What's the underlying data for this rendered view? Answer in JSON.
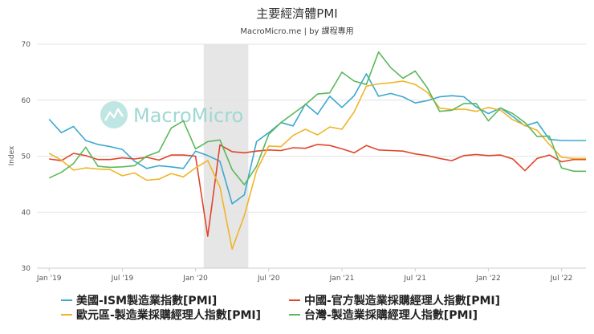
{
  "chart_data": {
    "type": "line",
    "title": "主要經濟體PMI",
    "subtitle": "MacroMicro.me | by 課程專用",
    "watermark": "MacroMicro",
    "ylabel": "Index",
    "xlabel": "",
    "ylim": [
      30,
      70
    ],
    "yticks": [
      30,
      40,
      50,
      60,
      70
    ],
    "xlim": [
      "2018-12",
      "2022-09"
    ],
    "xticks": [
      {
        "label": "Jan '19",
        "date": "2019-01"
      },
      {
        "label": "Jul '19",
        "date": "2019-07"
      },
      {
        "label": "Jan '20",
        "date": "2020-01"
      },
      {
        "label": "Jul '20",
        "date": "2020-07"
      },
      {
        "label": "Jan '21",
        "date": "2021-01"
      },
      {
        "label": "Jul '21",
        "date": "2021-07"
      },
      {
        "label": "Jan '22",
        "date": "2022-01"
      },
      {
        "label": "Jul '22",
        "date": "2022-07"
      }
    ],
    "highlight_band": [
      "2020-02",
      "2020-05"
    ],
    "grid": "horizontal",
    "legend_position": "bottom",
    "series": [
      {
        "name": "美國-ISM製造業指數[PMI]",
        "color": "#3aa8d0",
        "start": "2019-01",
        "values": [
          56.6,
          54.2,
          55.3,
          52.8,
          52.1,
          51.7,
          51.2,
          49.1,
          47.8,
          48.3,
          48.1,
          47.8,
          50.9,
          50.1,
          49.1,
          41.5,
          43.1,
          52.6,
          54.2,
          56.0,
          55.4,
          59.3,
          57.5,
          60.7,
          58.7,
          60.8,
          64.7,
          60.7,
          61.2,
          60.6,
          59.5,
          59.9,
          60.6,
          60.8,
          60.6,
          58.8,
          57.6,
          58.6,
          57.1,
          55.4,
          56.1,
          53.0,
          52.8,
          52.8,
          52.8
        ]
      },
      {
        "name": "中國-官方製造業採購經理人指數[PMI]",
        "color": "#e0452a",
        "start": "2019-01",
        "values": [
          49.5,
          49.2,
          50.5,
          50.1,
          49.4,
          49.4,
          49.7,
          49.5,
          49.8,
          49.3,
          50.2,
          50.2,
          50.0,
          35.7,
          52.0,
          50.8,
          50.6,
          50.9,
          51.1,
          51.0,
          51.5,
          51.4,
          52.1,
          51.9,
          51.3,
          50.6,
          51.9,
          51.1,
          51.0,
          50.9,
          50.4,
          50.1,
          49.6,
          49.2,
          50.1,
          50.3,
          50.1,
          50.2,
          49.5,
          47.4,
          49.6,
          50.2,
          49.0,
          49.4,
          49.4
        ]
      },
      {
        "name": "歐元區-製造業採購經理人指數[PMI]",
        "color": "#f0b429",
        "start": "2019-01",
        "values": [
          50.5,
          49.3,
          47.5,
          47.9,
          47.7,
          47.6,
          46.5,
          47.0,
          45.7,
          45.9,
          46.9,
          46.3,
          47.9,
          49.2,
          44.5,
          33.4,
          39.4,
          47.4,
          51.8,
          51.7,
          53.7,
          54.8,
          53.8,
          55.2,
          54.8,
          57.9,
          62.5,
          62.9,
          63.1,
          63.4,
          62.8,
          61.4,
          58.6,
          58.3,
          58.4,
          58.0,
          58.7,
          58.2,
          56.5,
          55.5,
          54.6,
          52.1,
          49.8,
          49.6,
          49.6
        ]
      },
      {
        "name": "台灣-製造業採購經理人指數[PMI]",
        "color": "#5cb85c",
        "start": "2019-01",
        "values": [
          46.1,
          47.1,
          48.7,
          51.6,
          48.2,
          48.0,
          48.1,
          48.3,
          50.0,
          50.8,
          55.0,
          56.3,
          51.3,
          52.6,
          52.9,
          47.6,
          44.9,
          48.2,
          53.9,
          56.0,
          57.6,
          59.2,
          61.1,
          61.3,
          65.0,
          63.4,
          62.8,
          68.6,
          65.8,
          63.9,
          65.2,
          62.2,
          58.0,
          58.2,
          59.4,
          59.4,
          56.3,
          58.6,
          57.6,
          56.0,
          53.5,
          53.6,
          47.9,
          47.3,
          47.3
        ]
      }
    ]
  }
}
